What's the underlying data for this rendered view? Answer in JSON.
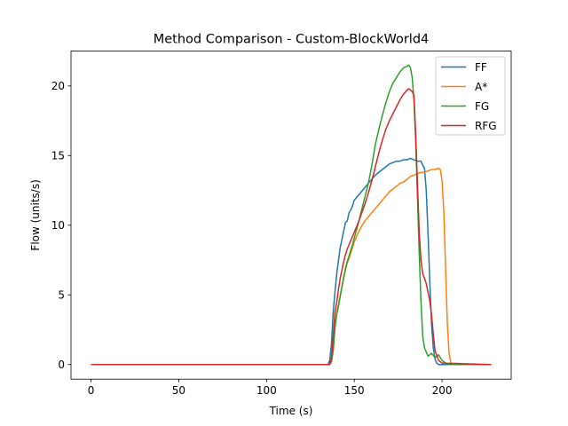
{
  "chart_data": {
    "type": "line",
    "title": "Method Comparison - Custom-BlockWorld4",
    "xlabel": "Time (s)",
    "ylabel": "Flow (units/s)",
    "xlim": [
      -11.4,
      239.4
    ],
    "ylim": [
      -1.05,
      22.5
    ],
    "xticks": [
      0,
      50,
      100,
      150,
      200
    ],
    "yticks": [
      0,
      5,
      10,
      15,
      20
    ],
    "grid": false,
    "legend_position": "top-right",
    "series": [
      {
        "name": "FF",
        "color": "#1f77b4",
        "x": [
          0,
          135,
          136,
          137,
          138,
          139,
          140,
          141,
          142,
          143,
          144,
          145,
          146,
          147,
          148,
          149,
          150,
          152,
          154,
          156,
          158,
          160,
          162,
          164,
          166,
          168,
          170,
          172,
          174,
          176,
          178,
          180,
          182,
          184,
          186,
          188,
          189,
          190,
          191,
          192,
          193,
          194,
          195,
          196,
          197,
          198,
          200,
          218,
          228
        ],
        "y": [
          0,
          0,
          0.3,
          1.5,
          3.8,
          5.2,
          6.5,
          7.5,
          8.4,
          9.0,
          9.6,
          10.2,
          10.3,
          10.9,
          11.1,
          11.4,
          11.8,
          12.1,
          12.4,
          12.7,
          13.0,
          13.3,
          13.6,
          13.8,
          14.0,
          14.2,
          14.4,
          14.5,
          14.6,
          14.6,
          14.7,
          14.7,
          14.8,
          14.7,
          14.6,
          14.6,
          14.3,
          14.1,
          12.5,
          9.5,
          6.0,
          3.0,
          1.2,
          0.4,
          0.1,
          0,
          0,
          0,
          0
        ]
      },
      {
        "name": "A*",
        "color": "#ff7f0e",
        "x": [
          0,
          136,
          137,
          138,
          139,
          140,
          141,
          142,
          143,
          144,
          145,
          146,
          147,
          148,
          149,
          150,
          152,
          154,
          156,
          158,
          160,
          162,
          164,
          166,
          168,
          170,
          172,
          174,
          176,
          178,
          180,
          182,
          184,
          186,
          188,
          190,
          192,
          194,
          196,
          198,
          199,
          200,
          201,
          202,
          203,
          204,
          205,
          207,
          228
        ],
        "y": [
          0,
          0,
          0.2,
          1.2,
          2.8,
          3.8,
          4.3,
          5.0,
          5.6,
          6.2,
          6.8,
          7.3,
          7.6,
          8.0,
          8.4,
          8.8,
          9.4,
          9.9,
          10.3,
          10.6,
          10.9,
          11.2,
          11.5,
          11.8,
          12.1,
          12.4,
          12.6,
          12.8,
          13.0,
          13.1,
          13.3,
          13.5,
          13.6,
          13.7,
          13.8,
          13.8,
          13.9,
          14.0,
          14.0,
          14.1,
          14.0,
          13.2,
          11.0,
          7.0,
          3.0,
          0.8,
          0.1,
          0,
          0
        ]
      },
      {
        "name": "FG",
        "color": "#2ca02c",
        "x": [
          0,
          136,
          137,
          138,
          139,
          140,
          141,
          142,
          143,
          144,
          145,
          146,
          147,
          148,
          149,
          150,
          152,
          154,
          156,
          158,
          160,
          162,
          164,
          166,
          168,
          170,
          172,
          174,
          176,
          178,
          180,
          181,
          182,
          183,
          184,
          185,
          186,
          187,
          188,
          189,
          190,
          192,
          194,
          196,
          198,
          200,
          202,
          204,
          228
        ],
        "y": [
          0,
          0,
          0.2,
          1.0,
          2.6,
          3.6,
          4.2,
          4.9,
          5.6,
          6.3,
          6.9,
          7.4,
          7.8,
          8.2,
          8.6,
          9.1,
          10.0,
          11.0,
          12.0,
          13.0,
          14.3,
          15.8,
          16.9,
          17.9,
          18.8,
          19.6,
          20.2,
          20.6,
          21.0,
          21.3,
          21.4,
          21.5,
          21.3,
          20.6,
          19.0,
          16.0,
          12.0,
          8.0,
          4.5,
          2.0,
          1.2,
          0.6,
          0.8,
          0.5,
          0.7,
          0.3,
          0.1,
          0,
          0
        ]
      },
      {
        "name": "RFG",
        "color": "#d62728",
        "x": [
          0,
          136,
          137,
          138,
          139,
          140,
          141,
          142,
          143,
          144,
          145,
          146,
          147,
          148,
          149,
          150,
          152,
          154,
          156,
          158,
          160,
          162,
          164,
          166,
          168,
          170,
          172,
          174,
          176,
          178,
          180,
          181,
          182,
          183,
          184,
          185,
          186,
          187,
          188,
          189,
          190,
          191,
          192,
          193,
          194,
          195,
          196,
          198,
          200,
          228
        ],
        "y": [
          0,
          0,
          0.5,
          2.0,
          3.8,
          4.5,
          5.4,
          6.2,
          6.8,
          7.4,
          7.9,
          8.3,
          8.6,
          8.9,
          9.2,
          9.5,
          10.1,
          10.8,
          11.5,
          12.3,
          13.2,
          14.2,
          15.2,
          16.1,
          16.9,
          17.5,
          18.0,
          18.5,
          19.0,
          19.4,
          19.7,
          19.8,
          19.7,
          19.6,
          19.3,
          16.5,
          13.0,
          9.5,
          7.5,
          6.5,
          6.2,
          5.8,
          5.2,
          4.6,
          3.6,
          2.2,
          1.0,
          0.3,
          0.1,
          0
        ]
      }
    ]
  }
}
